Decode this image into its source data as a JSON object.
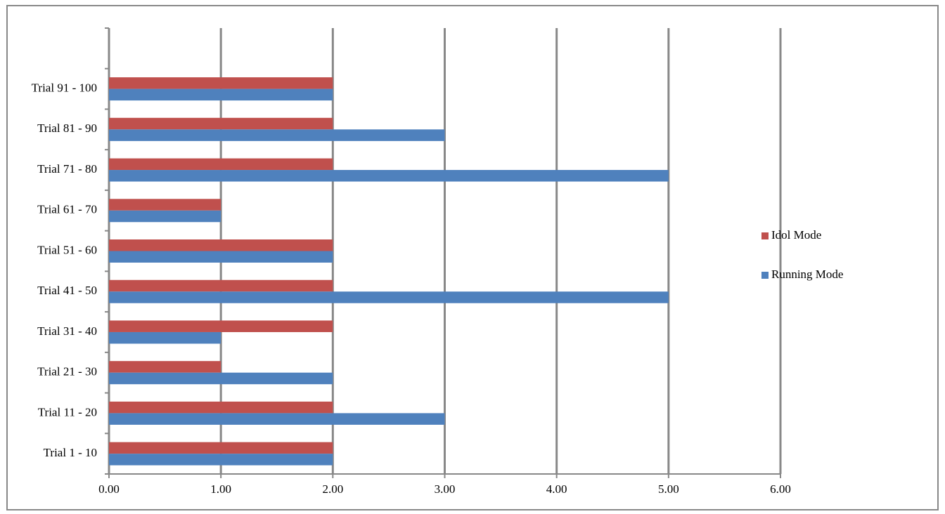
{
  "chart_data": {
    "type": "bar",
    "orientation": "horizontal",
    "categories": [
      "Trial 1 - 10",
      "Trial 11 - 20",
      "Trial 21 - 30",
      "Trial 31 - 40",
      "Trial 41 - 50",
      "Trial 51 - 60",
      "Trial 61 - 70",
      "Trial 71 - 80",
      "Trial 81 - 90",
      "Trial 91 - 100",
      null
    ],
    "series": [
      {
        "name": "Idol Mode",
        "color": "#c0504d",
        "values": [
          2,
          2,
          1,
          2,
          2,
          2,
          1,
          2,
          2,
          2,
          null
        ]
      },
      {
        "name": "Running Mode",
        "color": "#4f81bd",
        "values": [
          2,
          3,
          2,
          1,
          5,
          2,
          1,
          5,
          3,
          2,
          null
        ]
      }
    ],
    "xlim": [
      0,
      6
    ],
    "xticks": [
      {
        "value": 0,
        "label": "0.00"
      },
      {
        "value": 1,
        "label": "1.00"
      },
      {
        "value": 2,
        "label": "2.00"
      },
      {
        "value": 3,
        "label": "3.00"
      },
      {
        "value": 4,
        "label": "4.00"
      },
      {
        "value": 5,
        "label": "5.00"
      },
      {
        "value": 6,
        "label": "6.00"
      }
    ],
    "grid": true,
    "legend": "right"
  }
}
